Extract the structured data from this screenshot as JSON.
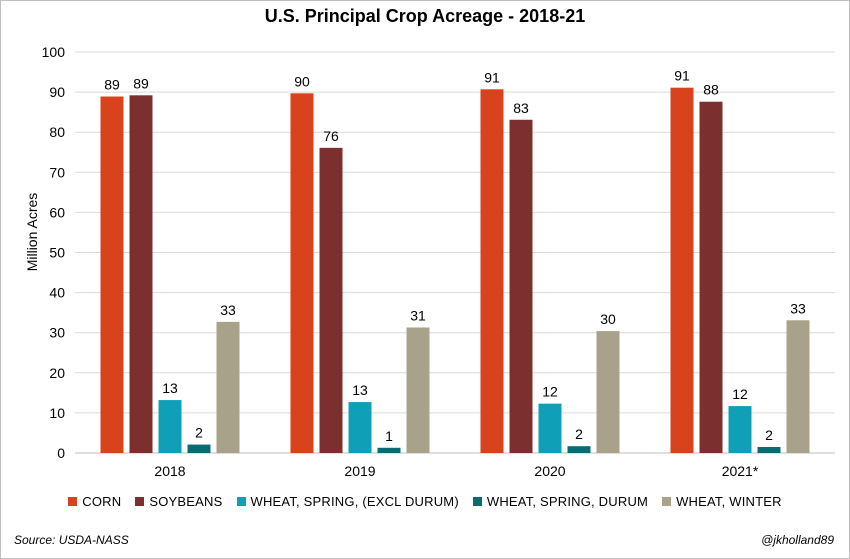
{
  "chart_data": {
    "type": "bar",
    "title": "U.S. Principal Crop Acreage - 2018-21",
    "ylabel": "Million Acres",
    "xlabel": "",
    "ylim": [
      0,
      100
    ],
    "yticks": [
      "0",
      "10",
      "20",
      "30",
      "40",
      "50",
      "60",
      "70",
      "80",
      "90",
      "100"
    ],
    "categories": [
      "2018",
      "2019",
      "2020",
      "2021*"
    ],
    "grid": true,
    "legend_position": "bottom",
    "series": [
      {
        "name": "CORN",
        "color": "#d8431e",
        "values": [
          88.9,
          89.7,
          90.7,
          91.1
        ],
        "labels": [
          "89",
          "90",
          "91",
          "91"
        ]
      },
      {
        "name": "SOYBEANS",
        "color": "#7b2f2f",
        "values": [
          89.2,
          76.1,
          83.1,
          87.6
        ],
        "labels": [
          "89",
          "76",
          "83",
          "88"
        ]
      },
      {
        "name": "WHEAT, SPRING, (EXCL DURUM)",
        "color": "#0fa0b8",
        "values": [
          13.2,
          12.7,
          12.3,
          11.7
        ],
        "labels": [
          "13",
          "13",
          "12",
          "12"
        ]
      },
      {
        "name": "WHEAT, SPRING, DURUM",
        "color": "#0b6b72",
        "values": [
          2.1,
          1.3,
          1.7,
          1.5
        ],
        "labels": [
          "2",
          "1",
          "2",
          "2"
        ]
      },
      {
        "name": "WHEAT, WINTER",
        "color": "#a8a28a",
        "values": [
          32.7,
          31.3,
          30.4,
          33.1
        ],
        "labels": [
          "33",
          "31",
          "30",
          "33"
        ]
      }
    ]
  },
  "footer": {
    "source": "Source: USDA-NASS",
    "credit": "@jkholland89"
  }
}
